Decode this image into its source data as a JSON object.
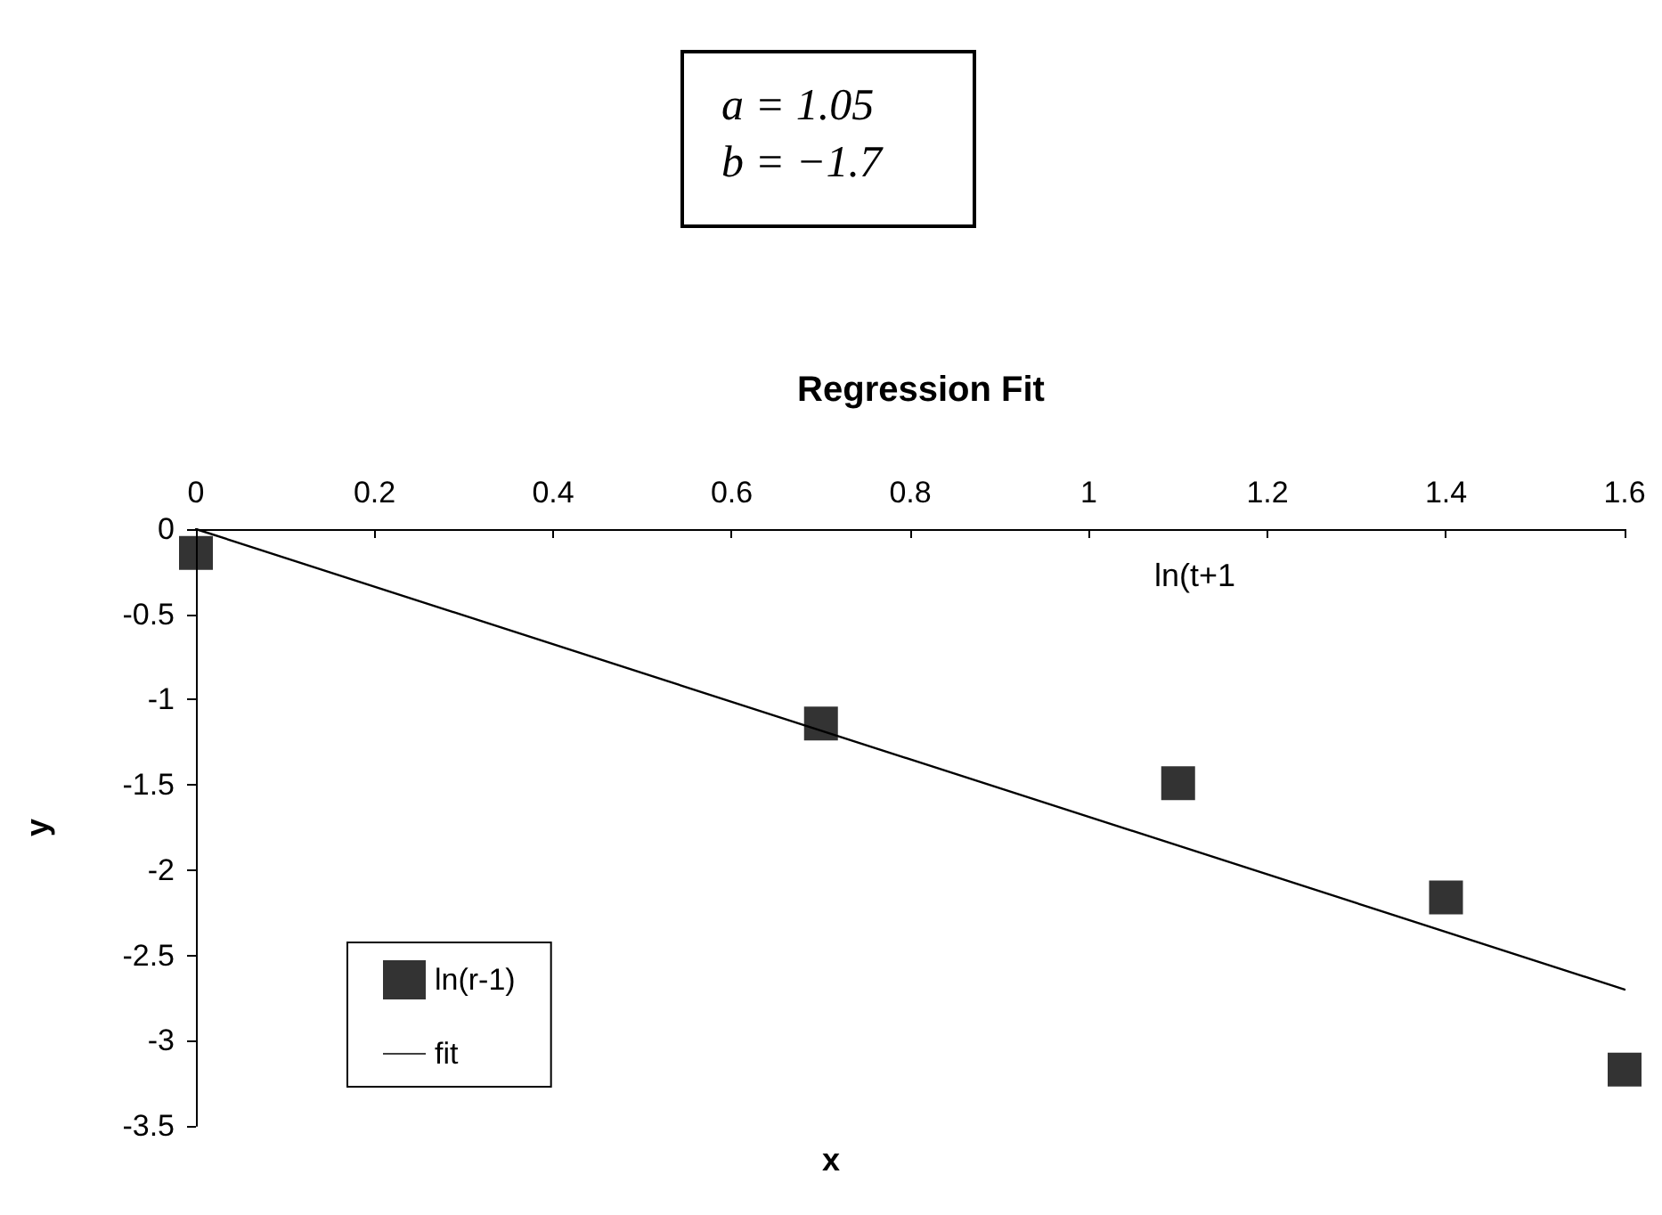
{
  "chart_data": {
    "type": "scatter",
    "title": "Regression Fit",
    "xlabel": "x",
    "ylabel": "y",
    "annotations": [
      "a = 1.05",
      "b = −1.7",
      "ln(t+1"
    ],
    "x": [
      0,
      0.7,
      1.1,
      1.4,
      1.6
    ],
    "series": [
      {
        "name": "ln(r-1)",
        "color": "#000000",
        "marker": "square",
        "values": [
          -0.14,
          -1.14,
          -1.49,
          -2.16,
          -3.17
        ]
      },
      {
        "name": "fit",
        "type": "line",
        "color": "#000000",
        "marker": "none",
        "line_style": "solid",
        "x": [
          0,
          1.6
        ],
        "values": [
          0,
          -2.7
        ]
      }
    ],
    "xlim": [
      0,
      1.6
    ],
    "xticks": [
      0,
      0.2,
      0.4,
      0.6,
      0.8,
      1,
      1.2,
      1.4,
      1.6
    ],
    "ylim": [
      -3.5,
      0
    ],
    "yticks": [
      -3.5,
      -3,
      -2.5,
      -2,
      -1.5,
      -1,
      -0.5,
      0
    ],
    "grid": false,
    "legend": "bottom left"
  }
}
